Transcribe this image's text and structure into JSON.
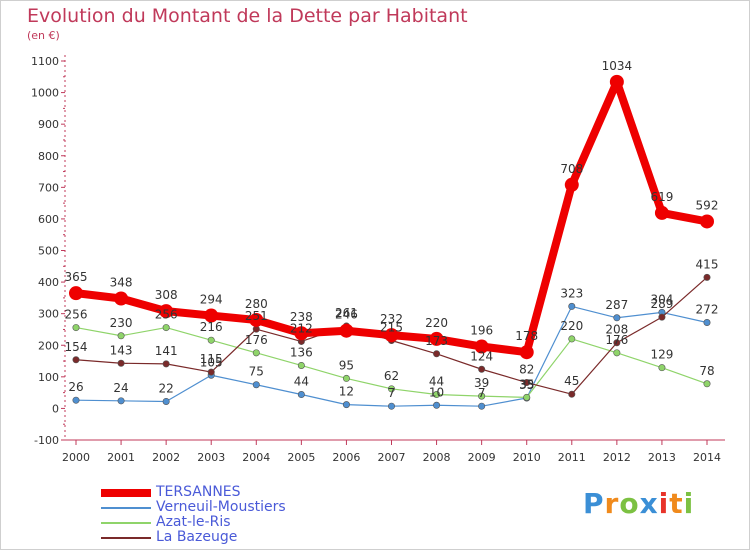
{
  "header": {
    "title": "Evolution du Montant de la Dette par Habitant",
    "unit": "(en €)"
  },
  "brand": {
    "letters": [
      "P",
      "r",
      "o",
      "x",
      "i",
      "t",
      "i"
    ],
    "colors": [
      "#3b8fd6",
      "#f08a1c",
      "#7cc142",
      "#3b8fd6",
      "#e8332a",
      "#f08a1c",
      "#7cc142"
    ]
  },
  "chart_data": {
    "type": "line",
    "title": "Evolution du Montant de la Dette par Habitant",
    "ylabel": "(en €)",
    "xlabel": "",
    "x": [
      "2000",
      "2001",
      "2002",
      "2003",
      "2004",
      "2005",
      "2006",
      "2007",
      "2008",
      "2009",
      "2010",
      "2011",
      "2012",
      "2013",
      "2014"
    ],
    "ylim": [
      -100,
      1100
    ],
    "yticks": [
      "-100",
      "0",
      "100",
      "200",
      "300",
      "400",
      "500",
      "600",
      "700",
      "800",
      "900",
      "1000",
      "1100"
    ],
    "grid": false,
    "legend_position": "bottom-left",
    "series": [
      {
        "name": "TERSANNES",
        "color": "#ee0000",
        "emphasis": true,
        "values": [
          365,
          348,
          308,
          294,
          280,
          238,
          246,
          232,
          220,
          196,
          178,
          708,
          1034,
          619,
          592
        ],
        "labels": [
          "365",
          "348",
          "308",
          "294",
          "280",
          "238",
          "246",
          "232",
          "220",
          "196",
          "178",
          "708",
          "1034",
          "619",
          "592"
        ]
      },
      {
        "name": "Verneuil-Moustiers",
        "color": "#4f8fd0",
        "emphasis": false,
        "values": [
          26,
          24,
          22,
          105,
          75,
          44,
          12,
          7,
          10,
          7,
          33,
          323,
          287,
          304,
          272
        ],
        "labels": [
          "26",
          "24",
          "22",
          "105",
          "75",
          "44",
          "12",
          "7",
          "10",
          "7",
          "33",
          "323",
          "287",
          "304",
          "272"
        ]
      },
      {
        "name": "Azat-le-Ris",
        "color": "#8fd46a",
        "emphasis": false,
        "values": [
          256,
          230,
          256,
          216,
          176,
          136,
          95,
          62,
          44,
          39,
          35,
          220,
          176,
          129,
          78
        ],
        "labels": [
          "256",
          "230",
          "256",
          "216",
          "176",
          "136",
          "95",
          "62",
          "44",
          "39",
          "35",
          "220",
          "176",
          "129",
          "78"
        ]
      },
      {
        "name": "La Bazeuge",
        "color": "#7a2a2a",
        "emphasis": false,
        "values": [
          154,
          143,
          141,
          115,
          251,
          212,
          261,
          215,
          173,
          124,
          82,
          45,
          208,
          289,
          415
        ],
        "labels": [
          "154",
          "143",
          "141",
          "115",
          "251",
          "212",
          "261",
          "215",
          "173",
          "124",
          "82",
          "45",
          "208",
          "289",
          "415"
        ]
      }
    ]
  }
}
